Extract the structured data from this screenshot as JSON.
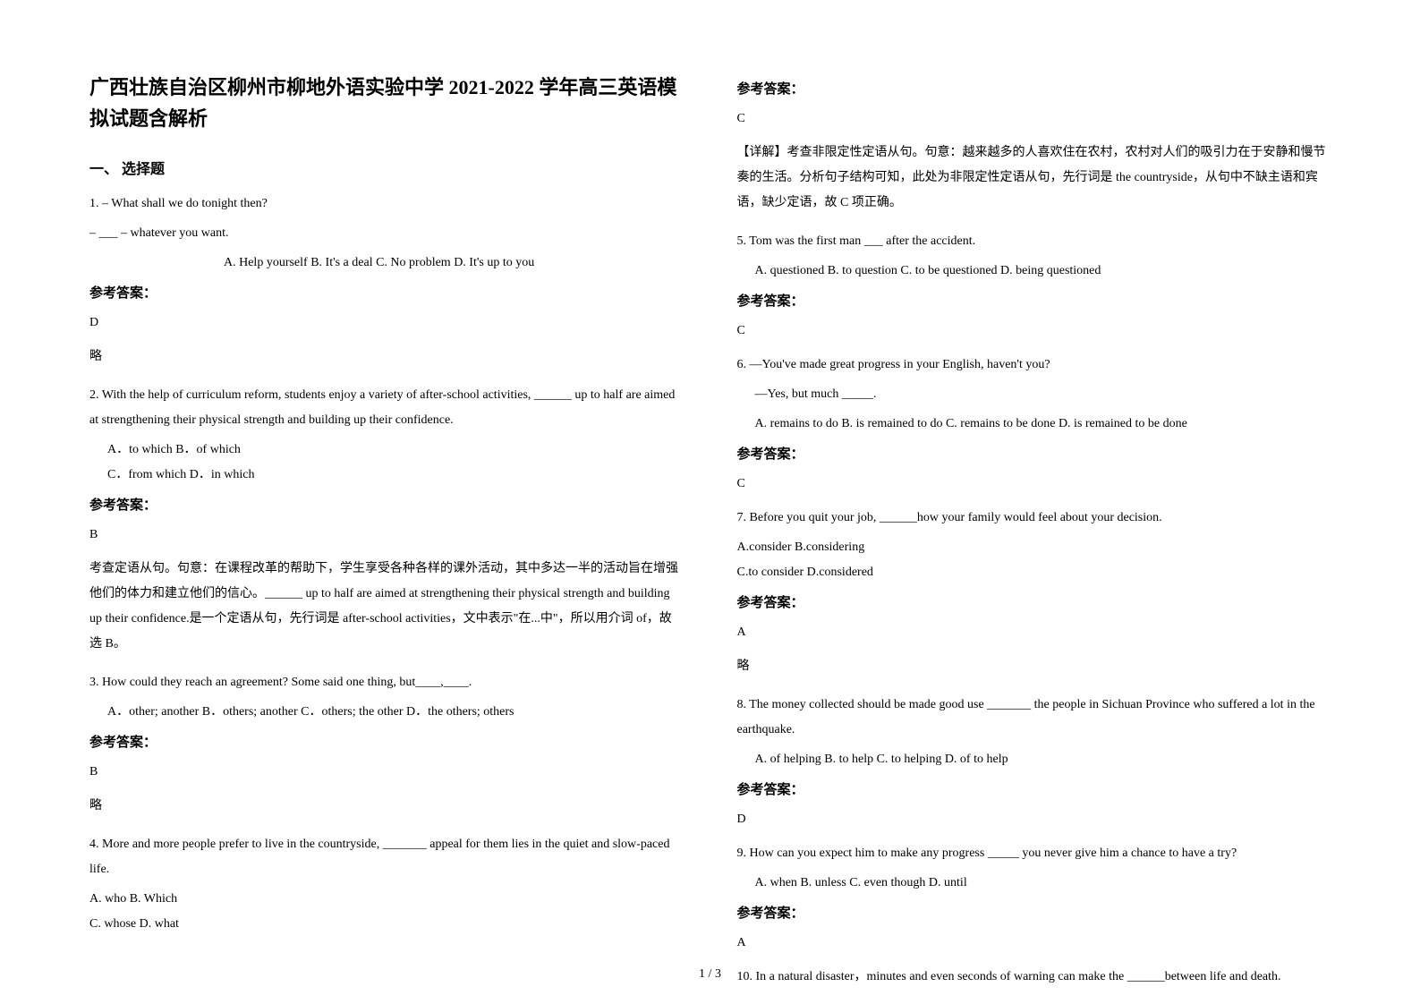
{
  "title": "广西壮族自治区柳州市柳地外语实验中学 2021-2022 学年高三英语模拟试题含解析",
  "section1_header": "一、 选择题",
  "q1": {
    "line1": "1. – What shall we do tonight then?",
    "line2": "– ___ – whatever you want.",
    "options": "A. Help yourself B. It's a deal    C. No problem D. It's up to you",
    "answer_label": "参考答案：",
    "answer": "D",
    "exp": "略"
  },
  "q2": {
    "text": "2. With the help of curriculum reform, students enjoy a variety of after-school activities, ______ up to half are aimed at strengthening their physical strength and building up their confidence.",
    "opts1": "A．to which   B．of which",
    "opts2": "C．from which   D．in which",
    "answer_label": "参考答案：",
    "answer": "B",
    "exp": "考查定语从句。句意：在课程改革的帮助下，学生享受各种各样的课外活动，其中多达一半的活动旨在增强他们的体力和建立他们的信心。______ up to half are aimed at strengthening their physical strength and building up their confidence.是一个定语从句，先行词是 after-school activities，文中表示\"在...中\"，所以用介词 of，故选 B。"
  },
  "q3": {
    "text": "3. How could they reach an agreement? Some said one thing, but____,____.",
    "opts": "A．other; another    B．others; another    C．others; the other    D．the others; others",
    "answer_label": "参考答案：",
    "answer": "B",
    "exp": "略"
  },
  "q4": {
    "text": "4. More and more people prefer to live in the countryside, _______ appeal for them lies in the quiet and slow-paced life.",
    "opts1": "A. who  B. Which",
    "opts2": "C. whose         D. what",
    "answer_label": "参考答案：",
    "answer": "C",
    "exp": "【详解】考查非限定性定语从句。句意：越来越多的人喜欢住在农村，农村对人们的吸引力在于安静和慢节奏的生活。分析句子结构可知，此处为非限定性定语从句，先行词是 the countryside，从句中不缺主语和宾语，缺少定语，故 C 项正确。"
  },
  "q5": {
    "text": "5. Tom was the first man ___ after the accident.",
    "opts": "A. questioned   B. to question  C. to be questioned  D. being questioned",
    "answer_label": "参考答案：",
    "answer": "C"
  },
  "q6": {
    "line1": "6. —You've made great progress in your English, haven't you?",
    "line2": "—Yes, but much _____.",
    "opts": "A. remains to do   B. is remained to do   C. remains to be done   D. is remained to be done",
    "answer_label": "参考答案：",
    "answer": "C"
  },
  "q7": {
    "text": "7. Before you quit your job, ______how your family would feel about your decision.",
    "opts1": "A.consider   B.considering",
    "opts2": "C.to consider  D.considered",
    "answer_label": "参考答案：",
    "answer": "A",
    "exp": "略"
  },
  "q8": {
    "text": "8.  The money collected should be made good use _______ the people in Sichuan Province who suffered a lot in the earthquake.",
    "opts": "A. of helping             B. to help             C. to helping         D. of to help",
    "answer_label": "参考答案：",
    "answer": "D"
  },
  "q9": {
    "text": "9. How can you expect him to make any progress _____ you never give him a chance to have a try?",
    "opts": "A. when               B. unless          C. even though           D. until",
    "answer_label": "参考答案：",
    "answer": "A"
  },
  "q10": {
    "text": "10. In a natural disaster，minutes and even seconds of warning can make the ______between life and death."
  },
  "page_num": "1 / 3"
}
